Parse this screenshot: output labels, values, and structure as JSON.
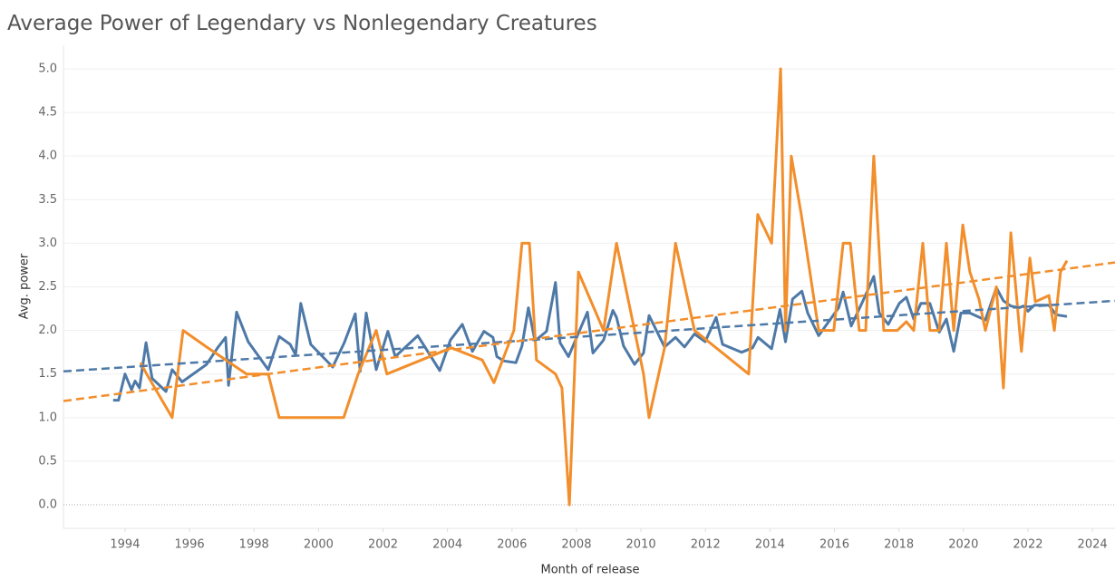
{
  "chart_data": {
    "type": "line",
    "title": "Average Power of Legendary vs Nonlegendary Creatures",
    "xlabel": "Month of release",
    "ylabel": "Avg. power",
    "xlim": [
      1992.09,
      2024.7
    ],
    "ylim": [
      -0.27,
      5.27
    ],
    "xticks": [
      1994,
      1996,
      1998,
      2000,
      2002,
      2004,
      2006,
      2008,
      2010,
      2012,
      2014,
      2016,
      2018,
      2020,
      2022,
      2024
    ],
    "yticks": [
      {
        "value": 0,
        "label": "0.0"
      },
      0.5,
      {
        "value": 1,
        "label": "1.0"
      },
      1.5,
      {
        "value": 2,
        "label": "2.0"
      },
      2.5,
      {
        "value": 3,
        "label": "3.0"
      },
      3.5,
      {
        "value": 4,
        "label": "4.0"
      },
      4.5,
      {
        "value": 5,
        "label": "5.0"
      }
    ],
    "grid": true,
    "series": [
      {
        "color": "#4e79a7",
        "x": [
          1993.63,
          1993.8,
          1994.0,
          1994.2,
          1994.31,
          1994.45,
          1994.65,
          1994.84,
          1995.27,
          1995.46,
          1995.77,
          1996.53,
          1996.87,
          1997.12,
          1997.21,
          1997.46,
          1997.82,
          1998.44,
          1998.78,
          1999.12,
          1999.29,
          1999.45,
          1999.76,
          2000.44,
          2000.8,
          2001.14,
          2001.29,
          2001.48,
          2001.79,
          2002.15,
          2002.38,
          2003.08,
          2003.76,
          2004.09,
          2004.46,
          2004.77,
          2005.13,
          2005.41,
          2005.53,
          2005.75,
          2006.12,
          2006.31,
          2006.51,
          2006.71,
          2007.07,
          2007.35,
          2007.49,
          2007.75,
          2008.34,
          2008.51,
          2008.84,
          2009.13,
          2009.24,
          2009.46,
          2009.8,
          2010.08,
          2010.25,
          2010.73,
          2011.07,
          2011.35,
          2011.66,
          2011.99,
          2012.33,
          2012.53,
          2013.12,
          2013.46,
          2013.63,
          2014.05,
          2014.31,
          2014.48,
          2014.7,
          2014.99,
          2015.17,
          2015.51,
          2016.13,
          2016.27,
          2016.52,
          2016.91,
          2017.22,
          2017.39,
          2017.67,
          2018.01,
          2018.23,
          2018.46,
          2018.68,
          2018.96,
          2019.25,
          2019.47,
          2019.7,
          2019.92,
          2020.2,
          2020.68,
          2021.02,
          2021.24,
          2021.47,
          2021.72,
          2021.86,
          2022.0,
          2022.2,
          2022.37,
          2022.65,
          2022.87,
          2023.21
        ],
        "values": [
          1.2,
          1.2,
          1.5,
          1.32,
          1.42,
          1.34,
          1.86,
          1.45,
          1.3,
          1.55,
          1.41,
          1.61,
          1.8,
          1.92,
          1.37,
          2.21,
          1.87,
          1.55,
          1.93,
          1.84,
          1.72,
          2.31,
          1.84,
          1.58,
          1.86,
          2.19,
          1.53,
          2.2,
          1.55,
          1.99,
          1.7,
          1.94,
          1.54,
          1.89,
          2.07,
          1.76,
          1.99,
          1.92,
          1.7,
          1.65,
          1.63,
          1.82,
          2.26,
          1.88,
          1.99,
          2.55,
          1.86,
          1.7,
          2.21,
          1.74,
          1.89,
          2.23,
          2.15,
          1.82,
          1.61,
          1.74,
          2.17,
          1.81,
          1.92,
          1.81,
          1.96,
          1.87,
          2.15,
          1.84,
          1.75,
          1.8,
          1.92,
          1.79,
          2.24,
          1.87,
          2.36,
          2.45,
          2.2,
          1.94,
          2.26,
          2.44,
          2.05,
          2.36,
          2.62,
          2.2,
          2.07,
          2.31,
          2.38,
          2.13,
          2.31,
          2.31,
          1.98,
          2.13,
          1.76,
          2.2,
          2.2,
          2.12,
          2.49,
          2.34,
          2.28,
          2.26,
          2.28,
          2.22,
          2.29,
          2.29,
          2.29,
          2.18,
          2.16
        ],
        "trend": {
          "x": [
            1992.09,
            2024.7
          ],
          "values": [
            1.53,
            2.34
          ]
        }
      },
      {
        "color": "#f28e2b",
        "x": [
          1994.48,
          1994.67,
          1995.46,
          1995.8,
          1996.53,
          1997.77,
          1998.44,
          1998.78,
          2000.78,
          2001.23,
          2001.79,
          2002.12,
          2004.12,
          2005.08,
          2005.44,
          2006.06,
          2006.31,
          2006.54,
          2006.76,
          2007.35,
          2007.55,
          2007.78,
          2008.06,
          2008.84,
          2009.24,
          2009.8,
          2010.08,
          2010.25,
          2010.73,
          2011.07,
          2011.66,
          2013.34,
          2013.62,
          2014.05,
          2014.33,
          2014.48,
          2014.66,
          2014.97,
          2015.51,
          2015.98,
          2016.27,
          2016.49,
          2016.77,
          2016.97,
          2017.22,
          2017.53,
          2017.95,
          2018.23,
          2018.46,
          2018.74,
          2018.96,
          2019.25,
          2019.47,
          2019.7,
          2019.98,
          2020.2,
          2020.48,
          2020.68,
          2021.02,
          2021.24,
          2021.47,
          2021.8,
          2022.06,
          2022.23,
          2022.65,
          2022.82,
          2023.01,
          2023.21
        ],
        "values": [
          1.63,
          1.5,
          1.0,
          2.0,
          1.81,
          1.5,
          1.5,
          1.0,
          1.0,
          1.5,
          2.0,
          1.5,
          1.8,
          1.66,
          1.4,
          2.0,
          3.0,
          3.0,
          1.66,
          1.5,
          1.34,
          0.0,
          2.67,
          2.0,
          3.0,
          2.0,
          1.5,
          1.0,
          1.8,
          3.0,
          2.0,
          1.5,
          3.33,
          3.0,
          5.0,
          2.0,
          4.0,
          3.33,
          2.0,
          2.0,
          3.0,
          3.0,
          2.0,
          2.0,
          4.0,
          2.0,
          2.0,
          2.1,
          2.0,
          3.0,
          2.0,
          2.0,
          3.0,
          2.0,
          3.21,
          2.67,
          2.36,
          2.0,
          2.5,
          1.34,
          3.12,
          1.76,
          2.83,
          2.33,
          2.4,
          2.0,
          2.67,
          2.8
        ],
        "trend": {
          "x": [
            1992.09,
            2024.7
          ],
          "values": [
            1.19,
            2.78
          ]
        }
      }
    ]
  }
}
